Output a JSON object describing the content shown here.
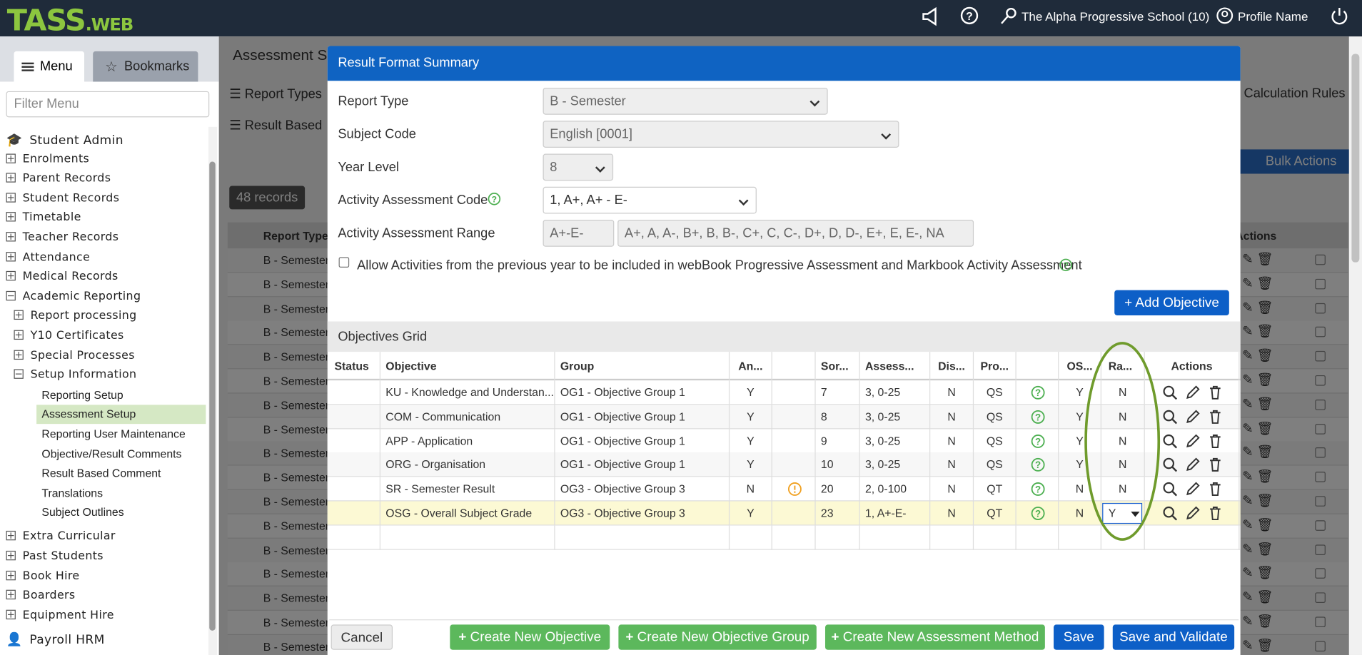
{
  "header": {
    "logo": "TASS",
    "logo_suffix": ".WEB",
    "school": "The Alpha Progressive School (10)",
    "profile": "Profile Name"
  },
  "sidebar": {
    "tabs": [
      "Menu",
      "Bookmarks"
    ],
    "filter_placeholder": "Filter Menu",
    "items": [
      {
        "label": "Student Admin",
        "level": 0,
        "state": "icon"
      },
      {
        "label": "Enrolments",
        "level": 0,
        "state": "collapsed"
      },
      {
        "label": "Parent Records",
        "level": 0,
        "state": "collapsed"
      },
      {
        "label": "Student Records",
        "level": 0,
        "state": "collapsed"
      },
      {
        "label": "Timetable",
        "level": 0,
        "state": "collapsed"
      },
      {
        "label": "Teacher Records",
        "level": 0,
        "state": "collapsed"
      },
      {
        "label": "Attendance",
        "level": 0,
        "state": "collapsed"
      },
      {
        "label": "Medical Records",
        "level": 0,
        "state": "collapsed"
      },
      {
        "label": "Academic Reporting",
        "level": 0,
        "state": "expanded"
      },
      {
        "label": "Report processing",
        "level": 1,
        "state": "collapsed"
      },
      {
        "label": "Y10 Certificates",
        "level": 1,
        "state": "collapsed"
      },
      {
        "label": "Special Processes",
        "level": 1,
        "state": "collapsed"
      },
      {
        "label": "Setup Information",
        "level": 1,
        "state": "expanded"
      },
      {
        "label": "Reporting Setup",
        "level": 2,
        "state": "link"
      },
      {
        "label": "Assessment Setup",
        "level": 2,
        "state": "active"
      },
      {
        "label": "Reporting User Maintenance",
        "level": 2,
        "state": "link"
      },
      {
        "label": "Objective/Result Comments",
        "level": 2,
        "state": "link"
      },
      {
        "label": "Result Based Comment",
        "level": 2,
        "state": "link"
      },
      {
        "label": "Translations",
        "level": 2,
        "state": "link"
      },
      {
        "label": "Subject Outlines",
        "level": 2,
        "state": "link"
      },
      {
        "label": "Extra Curricular",
        "level": 0,
        "state": "collapsed"
      },
      {
        "label": "Past Students",
        "level": 0,
        "state": "collapsed"
      },
      {
        "label": "Book Hire",
        "level": 0,
        "state": "collapsed"
      },
      {
        "label": "Boarders",
        "level": 0,
        "state": "collapsed"
      },
      {
        "label": "Equipment Hire",
        "level": 0,
        "state": "collapsed"
      },
      {
        "label": "Payroll HRM",
        "level": 0,
        "state": "icon"
      }
    ]
  },
  "background": {
    "title": "Assessment Se",
    "tabs": [
      "Report Types",
      "Result Based",
      "Calculation Rules"
    ],
    "bulk_actions": "Bulk Actions",
    "records": "48 records",
    "columns": [
      "Report Type",
      "Actions"
    ],
    "rows": [
      "B - Semester",
      "B - Semester",
      "B - Semester",
      "B - Semester",
      "B - Semester",
      "B - Semester",
      "B - Semester",
      "B - Semester",
      "B - Semester",
      "B - Semester",
      "B - Semester",
      "B - Semester",
      "B - Semester",
      "B - Semester",
      "B - Semester",
      "B - Semester",
      "B - Semester"
    ]
  },
  "modal": {
    "title": "Result Format Summary",
    "fields": [
      {
        "label": "Report Type",
        "value": "B - Semester"
      },
      {
        "label": "Subject Code",
        "value": "English [0001]"
      },
      {
        "label": "Year Level",
        "value": "8"
      },
      {
        "label": "Activity Assessment Code",
        "value": "1, A+, A+ - E-"
      },
      {
        "label": "Activity Assessment Range",
        "value": "A+-E-",
        "detail": "A+, A, A-, B+, B, B-, C+, C, C-, D+, D, D-, E+, E, E-, NA"
      }
    ],
    "checkbox": "Allow Activities from the previous year to be included in webBook Progressive Assessment and Markbook Activity Assessment",
    "add_objective": "Add Objective",
    "grid_title": "Objectives Grid",
    "columns": [
      "Status",
      "Objective",
      "Group",
      "An...",
      null,
      "Sor...",
      "Assess...",
      "Dis...",
      "Pro...",
      null,
      "OS...",
      "Ra...",
      "Actions"
    ],
    "rows": [
      {
        "objective": "KU - Knowledge and Understan...",
        "group": "OG1 - Objective Group 1",
        "an": "Y",
        "sort": "7",
        "assess": "3, 0-25",
        "dis": "N",
        "pro": "QS",
        "os": "Y",
        "ra": "N"
      },
      {
        "objective": "COM - Communication",
        "group": "OG1 - Objective Group 1",
        "an": "Y",
        "sort": "8",
        "assess": "3, 0-25",
        "dis": "N",
        "pro": "QS",
        "os": "Y",
        "ra": "N"
      },
      {
        "objective": "APP - Application",
        "group": "OG1 - Objective Group 1",
        "an": "Y",
        "sort": "9",
        "assess": "3, 0-25",
        "dis": "N",
        "pro": "QS",
        "os": "Y",
        "ra": "N"
      },
      {
        "objective": "ORG - Organisation",
        "group": "OG1 - Objective Group 1",
        "an": "Y",
        "sort": "10",
        "assess": "3, 0-25",
        "dis": "N",
        "pro": "QS",
        "os": "Y",
        "ra": "N"
      },
      {
        "objective": "SR - Semester Result",
        "group": "OG3 - Objective Group 3",
        "an": "N",
        "alert": true,
        "sort": "20",
        "assess": "2, 0-100",
        "dis": "N",
        "pro": "QT",
        "os": "N",
        "ra": "N"
      },
      {
        "objective": "OSG - Overall Subject Grade",
        "group": "OG3 - Objective Group 3",
        "an": "Y",
        "sort": "23",
        "assess": "1, A+-E-",
        "dis": "N",
        "pro": "QT",
        "os": "N",
        "ra": "Y",
        "selected": true
      }
    ],
    "buttons": [
      {
        "label": "Cancel",
        "style": "grey"
      },
      {
        "label": "Create New Objective",
        "style": "green"
      },
      {
        "label": "Create New Objective Group",
        "style": "green"
      },
      {
        "label": "Create New Assessment Method",
        "style": "green"
      },
      {
        "label": "Save",
        "style": "blue"
      },
      {
        "label": "Save and Validate",
        "style": "blue"
      }
    ]
  }
}
